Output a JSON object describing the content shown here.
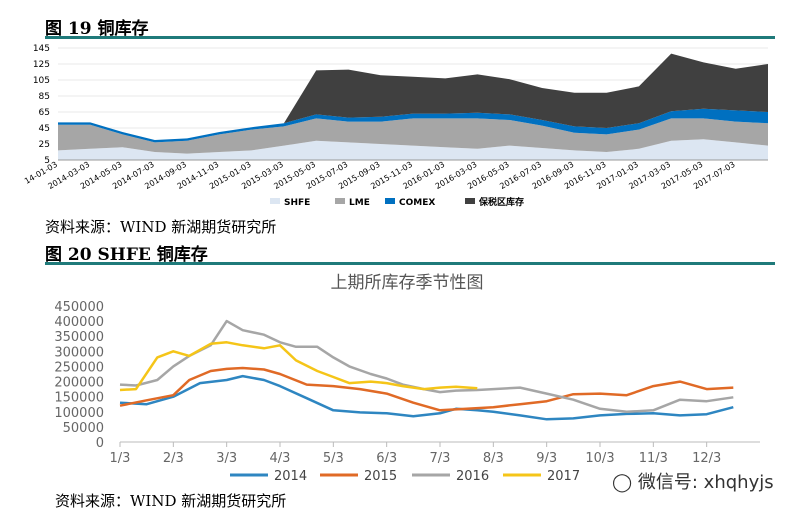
{
  "fig19": {
    "label": "图 19 铜库存"
  },
  "fig20": {
    "label": "图 20  SHFE 铜库存"
  },
  "source1": "资料来源：WIND 新湖期货研究所",
  "source2": "资料来源：WIND 新湖期货研究所",
  "watermark": "微信号: xhqhyjs",
  "colors": {
    "rule": "#1f7a7a",
    "shfe": "#dce6f2",
    "lme": "#a6a6a6",
    "comex": "#0070c0",
    "bonded": "#404040",
    "s2014": "#2e86c1",
    "s2015": "#e06a26",
    "s2016": "#a6a6a6",
    "s2017": "#f5c518"
  },
  "chart_data": [
    {
      "type": "area",
      "stacked": true,
      "x": [
        "2014-01-03",
        "2014-03-03",
        "2014-05-03",
        "2014-07-03",
        "2014-09-03",
        "2014-11-03",
        "2015-01-03",
        "2015-03-03",
        "2015-05-03",
        "2015-07-03",
        "2015-09-03",
        "2015-11-03",
        "2016-01-03",
        "2016-03-03",
        "2016-05-03",
        "2016-07-03",
        "2016-09-03",
        "2016-11-03",
        "2017-01-03",
        "2017-03-03",
        "2017-05-03",
        "2017-07-03",
        "2017-08-20"
      ],
      "xticks": [
        "14-01-03",
        "2014-03-03",
        "2014-05-03",
        "2014-07-03",
        "2014-09-03",
        "2014-11-03",
        "2015-01-03",
        "2015-03-03",
        "2015-05-03",
        "2015-07-03",
        "2015-09-03",
        "2015-11-03",
        "2016-01-03",
        "2016-03-03",
        "2016-05-03",
        "2016-07-03",
        "2016-09-03",
        "2016-11-03",
        "2017-01-03",
        "2017-03-03",
        "2017-05-03",
        "2017-07-03"
      ],
      "yticks": [
        5,
        25,
        45,
        65,
        85,
        105,
        125,
        145
      ],
      "ylim": [
        5,
        145
      ],
      "legend": "bottom",
      "series": [
        {
          "name": "SHFE",
          "values": [
            12,
            14,
            16,
            10,
            8,
            10,
            12,
            18,
            24,
            22,
            20,
            18,
            16,
            14,
            18,
            15,
            12,
            10,
            14,
            24,
            26,
            22,
            18
          ]
        },
        {
          "name": "LME",
          "values": [
            32,
            30,
            16,
            12,
            16,
            22,
            26,
            24,
            28,
            26,
            28,
            34,
            36,
            38,
            32,
            28,
            22,
            22,
            24,
            28,
            26,
            26,
            28
          ]
        },
        {
          "name": "COMEX",
          "values": [
            3,
            3,
            3,
            3,
            3,
            3,
            3,
            4,
            5,
            5,
            6,
            6,
            6,
            7,
            7,
            7,
            8,
            8,
            8,
            9,
            12,
            14,
            14
          ]
        },
        {
          "name": "保税区库存",
          "values": [
            0,
            0,
            0,
            0,
            0,
            0,
            0,
            0,
            55,
            60,
            52,
            46,
            44,
            48,
            44,
            40,
            42,
            44,
            46,
            72,
            58,
            52,
            60
          ]
        }
      ]
    },
    {
      "type": "line",
      "title": "上期所库存季节性图",
      "categories": [
        "1/3",
        "2/3",
        "3/3",
        "4/3",
        "5/3",
        "6/3",
        "7/3",
        "8/3",
        "9/3",
        "10/3",
        "11/3",
        "12/3"
      ],
      "yticks": [
        0,
        50000,
        100000,
        150000,
        200000,
        250000,
        300000,
        350000,
        400000,
        450000
      ],
      "ylim": [
        0,
        450000
      ],
      "legend": "bottom",
      "series": [
        {
          "name": "2014",
          "x": [
            1,
            1.5,
            2,
            2.5,
            3,
            3.3,
            3.7,
            4,
            4.5,
            5,
            5.5,
            6,
            6.5,
            7,
            7.3,
            7.7,
            8,
            8.5,
            9,
            9.5,
            10,
            10.5,
            11,
            11.5,
            12,
            12.5
          ],
          "values": [
            130000,
            125000,
            150000,
            195000,
            205000,
            218000,
            205000,
            185000,
            145000,
            105000,
            98000,
            95000,
            85000,
            95000,
            110000,
            105000,
            100000,
            88000,
            75000,
            78000,
            88000,
            93000,
            95000,
            88000,
            92000,
            115000
          ]
        },
        {
          "name": "2015",
          "x": [
            1,
            1.5,
            2,
            2.3,
            2.7,
            3,
            3.3,
            3.7,
            4,
            4.5,
            5,
            5.5,
            6,
            6.5,
            7,
            7.5,
            8,
            8.5,
            9,
            9.5,
            10,
            10.5,
            11,
            11.5,
            12,
            12.5
          ],
          "values": [
            120000,
            138000,
            155000,
            205000,
            235000,
            242000,
            245000,
            240000,
            225000,
            190000,
            185000,
            175000,
            160000,
            130000,
            105000,
            110000,
            115000,
            125000,
            135000,
            158000,
            160000,
            155000,
            185000,
            200000,
            175000,
            180000
          ]
        },
        {
          "name": "2016",
          "x": [
            1,
            1.3,
            1.7,
            2,
            2.3,
            2.7,
            3,
            3.3,
            3.7,
            4,
            4.3,
            4.7,
            5,
            5.3,
            5.7,
            6,
            6.3,
            6.7,
            7,
            7.3,
            7.7,
            8,
            8.5,
            9,
            9.5,
            10,
            10.5,
            11,
            11.5,
            12,
            12.5
          ],
          "values": [
            190000,
            187000,
            205000,
            250000,
            285000,
            320000,
            400000,
            370000,
            355000,
            330000,
            315000,
            315000,
            280000,
            250000,
            225000,
            210000,
            190000,
            175000,
            165000,
            170000,
            172000,
            175000,
            180000,
            160000,
            140000,
            110000,
            100000,
            105000,
            140000,
            135000,
            148000
          ]
        },
        {
          "name": "2017",
          "x": [
            1,
            1.3,
            1.7,
            2,
            2.3,
            2.7,
            3,
            3.3,
            3.7,
            4,
            4.3,
            4.7,
            5,
            5.3,
            5.7,
            6,
            6.3,
            6.7,
            7,
            7.3,
            7.7
          ],
          "values": [
            172000,
            175000,
            280000,
            300000,
            285000,
            325000,
            330000,
            320000,
            310000,
            320000,
            270000,
            235000,
            215000,
            195000,
            200000,
            195000,
            185000,
            175000,
            180000,
            183000,
            178000
          ]
        }
      ]
    }
  ]
}
